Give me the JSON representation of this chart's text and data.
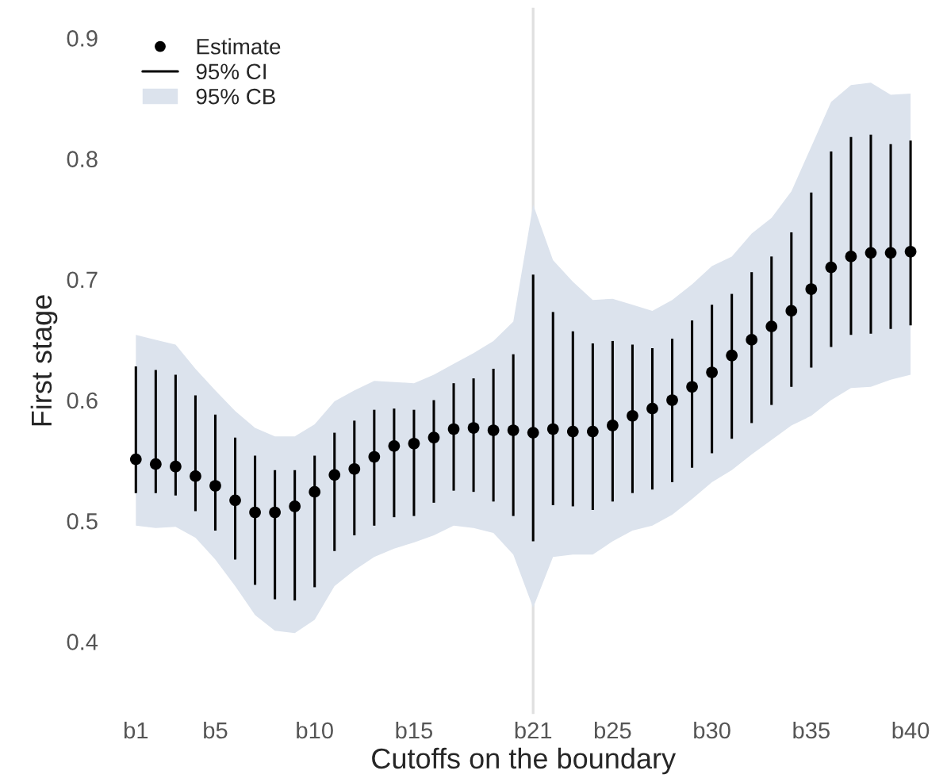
{
  "chart_data": {
    "type": "scatter",
    "xlabel": "Cutoffs on the boundary",
    "ylabel": "First stage",
    "categories": [
      "b1",
      null,
      null,
      null,
      "b5",
      null,
      null,
      null,
      null,
      "b10",
      null,
      null,
      null,
      null,
      "b15",
      null,
      null,
      null,
      null,
      null,
      "b21",
      null,
      null,
      null,
      "b25",
      null,
      null,
      null,
      null,
      "b30",
      null,
      null,
      null,
      null,
      "b35",
      null,
      null,
      null,
      null,
      "b40"
    ],
    "series": [
      {
        "name": "Estimate",
        "color": "#000000",
        "lower": [
          0.496,
          0.494,
          0.495,
          0.486,
          0.468,
          0.446,
          0.422,
          0.409,
          0.407,
          0.418,
          0.446,
          0.459,
          0.47,
          0.477,
          0.482,
          0.488,
          0.496,
          0.494,
          0.49,
          0.472,
          0.428,
          0.47,
          0.472,
          0.472,
          0.483,
          0.492,
          0.496,
          0.505,
          0.518,
          0.532,
          0.542,
          0.555,
          0.567,
          0.579,
          0.587,
          0.6,
          0.61,
          0.611,
          0.617,
          0.621
        ],
        "upper": [
          0.654,
          0.65,
          0.646,
          0.626,
          0.608,
          0.591,
          0.577,
          0.57,
          0.57,
          0.58,
          0.599,
          0.608,
          0.616,
          0.615,
          0.614,
          0.621,
          0.63,
          0.639,
          0.649,
          0.665,
          0.762,
          0.716,
          0.698,
          0.683,
          0.684,
          0.679,
          0.674,
          0.683,
          0.696,
          0.711,
          0.719,
          0.738,
          0.751,
          0.773,
          0.81,
          0.847,
          0.861,
          0.863,
          0.853,
          0.854
        ],
        "values": [
          0.551,
          0.547,
          0.545,
          0.537,
          0.529,
          0.517,
          0.507,
          0.507,
          0.512,
          0.524,
          0.538,
          0.543,
          0.553,
          0.562,
          0.564,
          0.569,
          0.576,
          0.577,
          0.575,
          0.575,
          0.573,
          0.576,
          0.574,
          0.574,
          0.579,
          0.587,
          0.593,
          0.6,
          0.611,
          0.623,
          0.637,
          0.65,
          0.661,
          0.674,
          0.692,
          0.71,
          0.719,
          0.722,
          0.722,
          0.723
        ],
        "errors": [
          [
            0.523,
            0.628
          ],
          [
            0.523,
            0.625
          ],
          [
            0.521,
            0.621
          ],
          [
            0.508,
            0.604
          ],
          [
            0.492,
            0.588
          ],
          [
            0.468,
            0.569
          ],
          [
            0.447,
            0.554
          ],
          [
            0.435,
            0.542
          ],
          [
            0.434,
            0.542
          ],
          [
            0.445,
            0.554
          ],
          [
            0.475,
            0.573
          ],
          [
            0.488,
            0.583
          ],
          [
            0.496,
            0.592
          ],
          [
            0.503,
            0.593
          ],
          [
            0.504,
            0.592
          ],
          [
            0.515,
            0.6
          ],
          [
            0.525,
            0.614
          ],
          [
            0.524,
            0.618
          ],
          [
            0.516,
            0.626
          ],
          [
            0.504,
            0.638
          ],
          [
            0.483,
            0.704
          ],
          [
            0.513,
            0.673
          ],
          [
            0.512,
            0.657
          ],
          [
            0.509,
            0.647
          ],
          [
            0.516,
            0.649
          ],
          [
            0.523,
            0.646
          ],
          [
            0.526,
            0.643
          ],
          [
            0.532,
            0.651
          ],
          [
            0.544,
            0.666
          ],
          [
            0.556,
            0.679
          ],
          [
            0.568,
            0.688
          ],
          [
            0.581,
            0.706
          ],
          [
            0.596,
            0.719
          ],
          [
            0.611,
            0.739
          ],
          [
            0.627,
            0.772
          ],
          [
            0.644,
            0.806
          ],
          [
            0.654,
            0.818
          ],
          [
            0.655,
            0.82
          ],
          [
            0.659,
            0.812
          ],
          [
            0.662,
            0.815
          ]
        ]
      }
    ],
    "annotations": [
      "95% CI",
      "95% CB"
    ],
    "marker": "circle",
    "colors": [
      "#dce3ed"
    ],
    "ref_lines": [
      {
        "axis": "x",
        "value": "b21",
        "color": "#e0e0e0"
      }
    ],
    "ylim": [
      0.34,
      0.925
    ],
    "yticks": [
      0.4,
      0.5,
      0.6,
      0.7,
      0.8,
      0.9
    ],
    "grid": false,
    "legend": "top left"
  }
}
